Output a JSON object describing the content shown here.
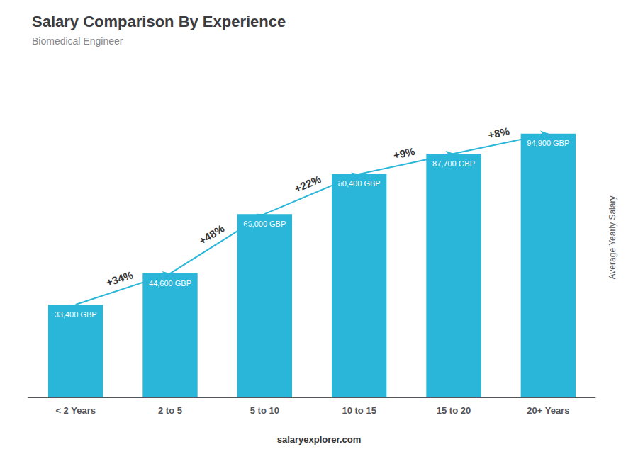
{
  "chart_data": {
    "type": "bar",
    "title": "Salary Comparison By Experience",
    "subtitle": "Biomedical Engineer",
    "ylabel": "Average Yearly Salary",
    "footer": "salaryexplorer.com",
    "categories": [
      "< 2 Years",
      "2 to 5",
      "5 to 10",
      "10 to 15",
      "15 to 20",
      "20+ Years"
    ],
    "values": [
      33400,
      44600,
      66000,
      80400,
      87700,
      94900
    ],
    "value_labels": [
      "33,400 GBP",
      "44,600 GBP",
      "66,000 GBP",
      "80,400 GBP",
      "87,700 GBP",
      "94,900 GBP"
    ],
    "data_labels": true,
    "annotations": [
      "+34%",
      "+48%",
      "+22%",
      "+9%",
      "+8%"
    ],
    "color": "#29b6d8",
    "ylim": [
      0,
      115000
    ],
    "grid": false,
    "tick_labels": "x"
  }
}
